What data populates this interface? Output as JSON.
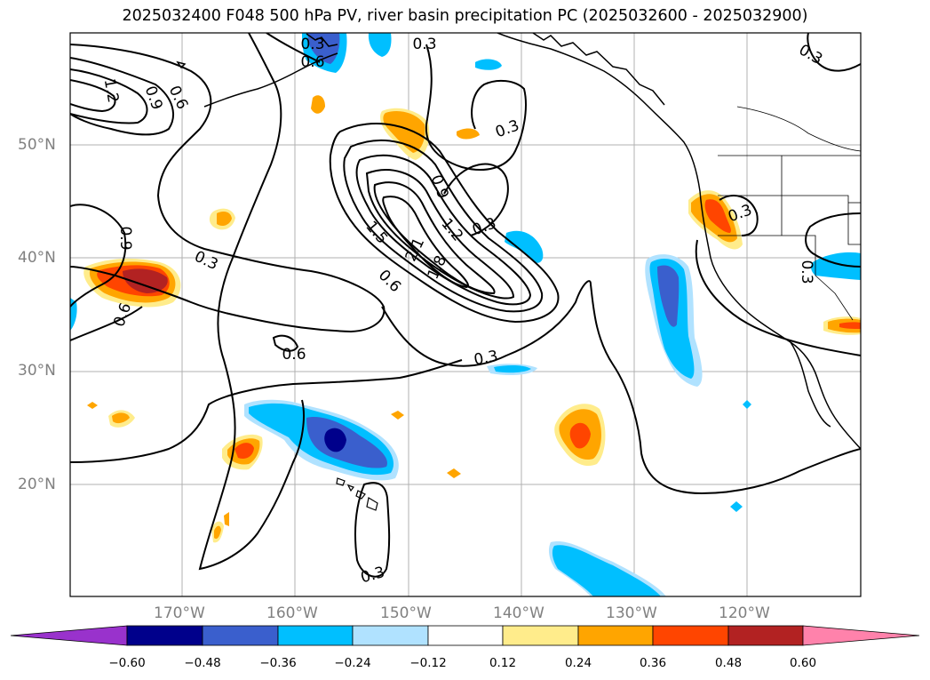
{
  "title": "2025032400 F048 500 hPa PV, river basin precipitation PC (2025032600 - 2025032900)",
  "latitude_labels": [
    "50°N",
    "40°N",
    "30°N",
    "20°N"
  ],
  "longitude_labels": [
    "170°W",
    "160°W",
    "150°W",
    "140°W",
    "130°W",
    "120°W"
  ],
  "contour_labels": [
    "1.2",
    "0.9",
    "0.6",
    "0.6",
    "0.3",
    "0.3",
    "0.3",
    "0.3",
    "0.3",
    "0.9",
    "1.2",
    "1.5",
    "2.1",
    "1.8",
    "0.6",
    "0.3",
    "0.6",
    "0.9",
    "0.3",
    "0.6",
    "0.3",
    "0.3",
    "0.3"
  ],
  "colorbar": {
    "ticks": [
      "−0.60",
      "−0.48",
      "−0.36",
      "−0.24",
      "−0.12",
      "0.12",
      "0.24",
      "0.36",
      "0.48",
      "0.60"
    ],
    "colors": [
      "#9932cc",
      "#00008b",
      "#3a5fcd",
      "#00bfff",
      "#b0e2ff",
      "#ffffff",
      "#ffec8b",
      "#ffa500",
      "#ff4500",
      "#b22222",
      "#ff82ab"
    ]
  },
  "colors": {
    "grid": "#b0b0b0",
    "coastline": "#000000",
    "contour": "#000000",
    "axis_label": "#808080"
  }
}
